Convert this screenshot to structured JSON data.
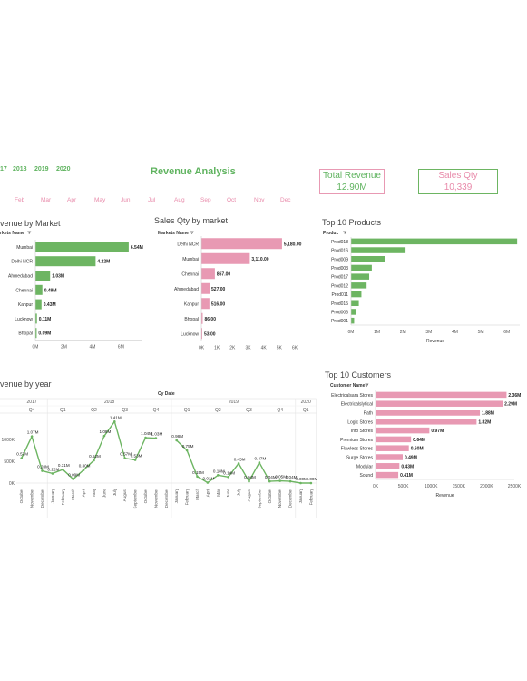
{
  "filters": {
    "years": [
      "17",
      "2018",
      "2019",
      "2020"
    ],
    "months": [
      "Feb",
      "Mar",
      "Apr",
      "May",
      "Jun",
      "Jul",
      "Aug",
      "Sep",
      "Oct",
      "Nov",
      "Dec"
    ]
  },
  "dashboard": {
    "title": "Revenue Analysis",
    "total_revenue_label": "Total Revenue",
    "total_revenue_value": "12.90M",
    "sales_qty_label": "Sales Qty",
    "sales_qty_value": "10,339"
  },
  "colors": {
    "green": "#6db562",
    "pink": "#e899b3",
    "title_green": "#5fb35f",
    "pink_text": "#e88aaa"
  },
  "chart_data": [
    {
      "type": "bar",
      "title": "venue by Market",
      "field_label": "rkets Name",
      "categories": [
        "Mumbai",
        "Delhi NCR",
        "Ahmedabad",
        "Chennai",
        "Kanpur",
        "Lucknow",
        "Bhopal"
      ],
      "values": [
        6.54,
        4.22,
        1.03,
        0.49,
        0.43,
        0.11,
        0.09
      ],
      "labels": [
        "6.54M",
        "4.22M",
        "1.03M",
        "0.49M",
        "0.43M",
        "0.11M",
        "0.09M"
      ],
      "ticks": [
        "0M",
        "2M",
        "4M",
        "6M"
      ],
      "xlim": [
        0,
        7.5
      ]
    },
    {
      "type": "bar",
      "title": "Sales Qty by market",
      "field_label": "Markets Name",
      "categories": [
        "Delhi NCR",
        "Mumbai",
        "Chennai",
        "Ahmedabad",
        "Kanpur",
        "Bhopal",
        "Lucknow"
      ],
      "values": [
        5180,
        3110,
        867,
        527,
        516,
        86,
        53
      ],
      "labels": [
        "5,180.00",
        "3,110.00",
        "867.00",
        "527.00",
        "516.00",
        "86.00",
        "53.00"
      ],
      "ticks": [
        "0K",
        "1K",
        "2K",
        "3K",
        "4K",
        "5K",
        "6K"
      ],
      "xlim": [
        0,
        6000
      ]
    },
    {
      "type": "bar",
      "title": "Top 10 Products",
      "field_label": "Produ..",
      "categories": [
        "Prod018",
        "Prod016",
        "Prod009",
        "Prod003",
        "Prod017",
        "Prod012",
        "Prod011",
        "Prod015",
        "Prod006",
        "Prod001"
      ],
      "values": [
        6.4,
        2.1,
        1.3,
        0.8,
        0.7,
        0.6,
        0.4,
        0.3,
        0.2,
        0.12
      ],
      "ticks": [
        "0M",
        "1M",
        "2M",
        "3M",
        "4M",
        "5M",
        "6M"
      ],
      "xlabel": "Revenue",
      "xlim": [
        0,
        6.5
      ]
    },
    {
      "type": "line",
      "title": "venue by year",
      "header": "Cy Date",
      "years": [
        {
          "label": "2017",
          "quarters": [
            "Q4"
          ]
        },
        {
          "label": "2018",
          "quarters": [
            "Q1",
            "Q2",
            "Q3",
            "Q4"
          ]
        },
        {
          "label": "2019",
          "quarters": [
            "Q1",
            "Q2",
            "Q3",
            "Q4"
          ]
        },
        {
          "label": "2020",
          "quarters": [
            "Q1"
          ]
        }
      ],
      "x": [
        "October",
        "November",
        "December",
        "January",
        "February",
        "March",
        "April",
        "May",
        "June",
        "July",
        "August",
        "September",
        "October",
        "November",
        "December",
        "January",
        "February",
        "March",
        "April",
        "May",
        "June",
        "July",
        "August",
        "September",
        "October",
        "November",
        "December",
        "January",
        "February"
      ],
      "values": [
        0.57,
        1.07,
        0.28,
        0.22,
        0.31,
        0.09,
        0.3,
        0.52,
        1.08,
        1.41,
        0.57,
        0.53,
        1.04,
        1.03,
        null,
        0.98,
        0.75,
        0.15,
        0.01,
        0.18,
        0.14,
        0.45,
        0.04,
        0.47,
        0.04,
        0.05,
        0.04,
        0.0,
        0.0
      ],
      "labels": [
        "0.57M",
        "1.07M",
        "0.28M",
        "0.22M",
        "0.31M",
        "0.09M",
        "0.30M",
        "0.52M",
        "1.08M",
        "1.41M",
        "0.57M",
        "0.53M",
        "1.04M",
        "1.03M",
        "",
        "0.98M",
        "0.75M",
        "0.15M",
        "0.01M",
        "0.18M",
        "0.14M",
        "0.45M",
        "0.04M",
        "0.47M",
        "0.04M",
        "0.05M",
        "0.04M",
        "0.00M",
        "0.00M"
      ],
      "yticks": [
        "1000K",
        "500K",
        "0K"
      ],
      "ylim": [
        0,
        1.5
      ]
    },
    {
      "type": "bar",
      "title": "Top 10 Customers",
      "field_label": "Customer Name",
      "categories": [
        "Electricalsara Stores",
        "Electricalslytical",
        "Path",
        "Logic Stores",
        "Info Stores",
        "Premium Stores",
        "Flawless Stores",
        "Surge Stores",
        "Modular",
        "Sound"
      ],
      "values": [
        2.36,
        2.29,
        1.88,
        1.82,
        0.97,
        0.64,
        0.6,
        0.49,
        0.43,
        0.41
      ],
      "labels": [
        "2.36M",
        "2.29M",
        "1.88M",
        "1.82M",
        "0.97M",
        "0.64M",
        "0.60M",
        "0.49M",
        "0.43M",
        "0.41M"
      ],
      "ticks": [
        "0K",
        "500K",
        "1000K",
        "1500K",
        "2000K",
        "2500K"
      ],
      "xlabel": "Revenue",
      "xlim": [
        0,
        2.5
      ]
    }
  ]
}
